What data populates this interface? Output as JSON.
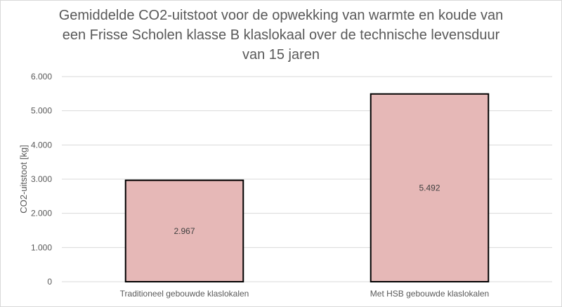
{
  "chart_data": {
    "type": "bar",
    "title_lines": [
      "Gemiddelde CO2-uitstoot voor de opwekking van warmte en koude van",
      "een Frisse Scholen klasse B klaslokaal over de technische levensduur",
      "van 15 jaren"
    ],
    "xlabel": "",
    "ylabel": "CO2-uitstoot [kg]",
    "categories": [
      "Traditioneel gebouwde klaslokalen",
      "Met HSB gebouwde klaslokalen"
    ],
    "values": [
      2967,
      5492
    ],
    "data_labels": [
      "2.967",
      "5.492"
    ],
    "ylim": [
      0,
      6000
    ],
    "yticks": [
      0,
      1000,
      2000,
      3000,
      4000,
      5000,
      6000
    ],
    "ytick_labels": [
      "0",
      "1.000",
      "2.000",
      "3.000",
      "4.000",
      "5.000",
      "6.000"
    ],
    "grid": true,
    "legend": "none",
    "colors": {
      "bar_fill": "#e6b8b7",
      "bar_stroke": "#000000",
      "grid": "#d9d9d9",
      "text": "#595959",
      "label_text": "#404040"
    }
  }
}
